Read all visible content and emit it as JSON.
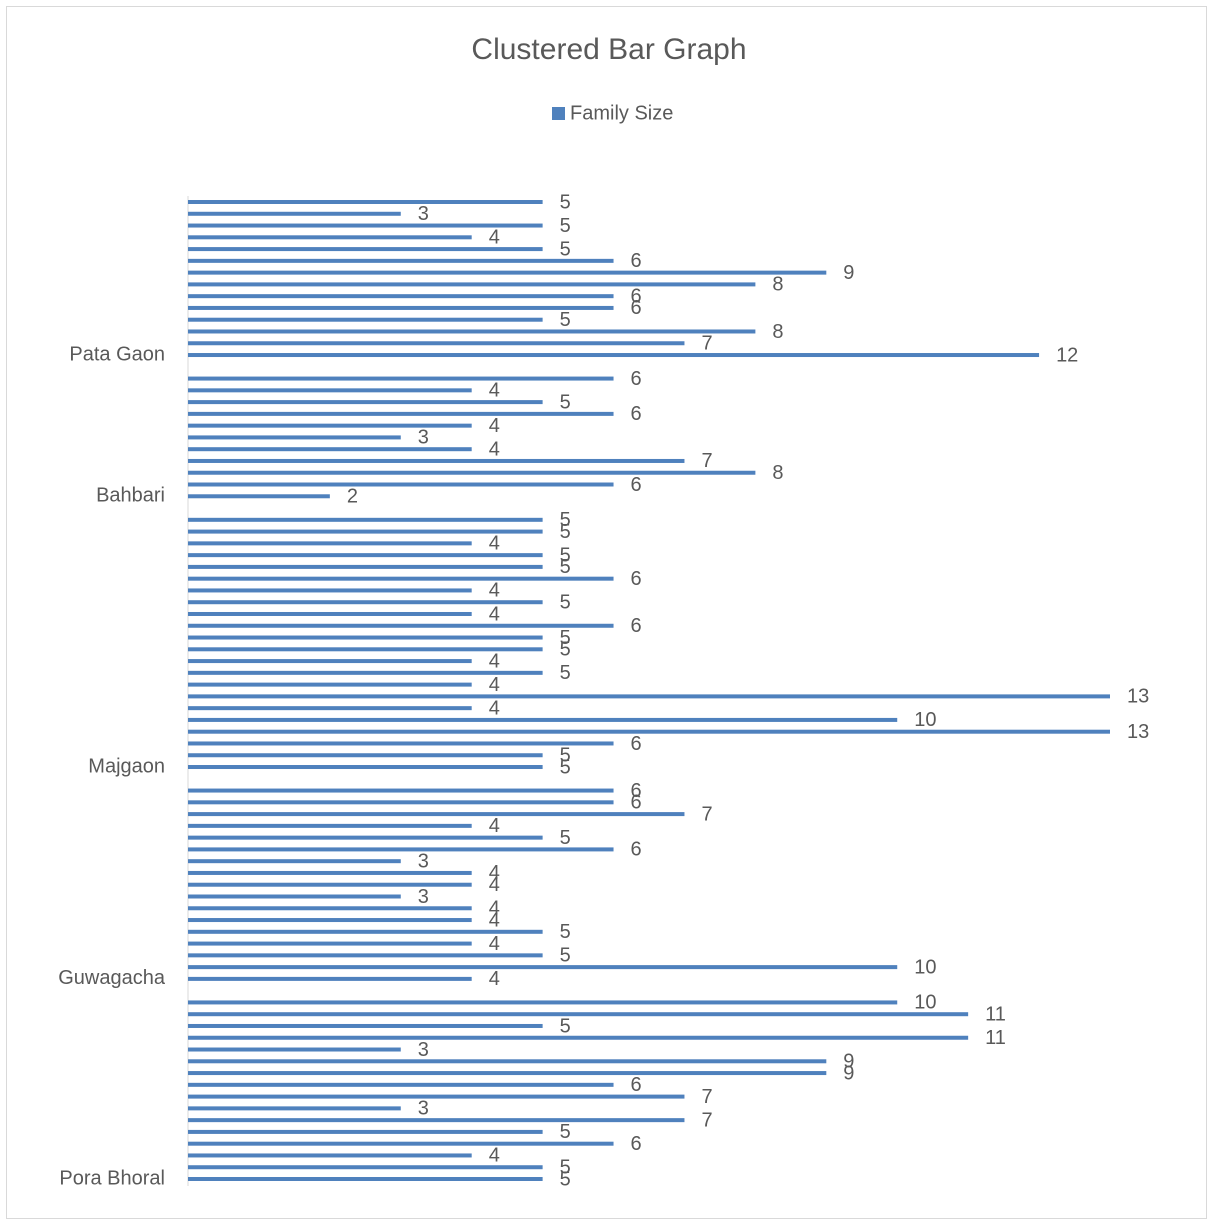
{
  "chart_data": {
    "type": "bar",
    "orientation": "horizontal",
    "title": "Clustered Bar Graph",
    "categories": [
      null,
      null,
      null,
      null,
      null,
      null,
      null,
      null,
      null,
      null,
      null,
      null,
      null,
      "Pata Gaon",
      null,
      null,
      null,
      null,
      null,
      null,
      null,
      null,
      null,
      null,
      null,
      "Bahbari",
      null,
      null,
      null,
      null,
      null,
      null,
      null,
      null,
      null,
      null,
      null,
      null,
      null,
      null,
      null,
      null,
      null,
      null,
      null,
      null,
      null,
      null,
      "Majgaon",
      null,
      null,
      null,
      null,
      null,
      null,
      null,
      null,
      null,
      null,
      null,
      null,
      null,
      null,
      null,
      null,
      null,
      "Guwagacha",
      null,
      null,
      null,
      null,
      null,
      null,
      null,
      null,
      null,
      null,
      null,
      null,
      null,
      null,
      null,
      null,
      "Pora Bhoral"
    ],
    "series": [
      {
        "name": "Family Size",
        "color": "#4f81bd",
        "values": [
          5,
          3,
          5,
          4,
          5,
          6,
          9,
          8,
          6,
          6,
          5,
          8,
          7,
          12,
          null,
          6,
          4,
          5,
          6,
          4,
          3,
          4,
          7,
          8,
          6,
          2,
          null,
          5,
          5,
          4,
          5,
          5,
          6,
          4,
          5,
          4,
          6,
          5,
          5,
          4,
          5,
          4,
          13,
          4,
          10,
          13,
          6,
          5,
          5,
          null,
          6,
          6,
          7,
          4,
          5,
          6,
          3,
          4,
          4,
          3,
          4,
          4,
          5,
          4,
          5,
          10,
          4,
          null,
          10,
          11,
          5,
          11,
          3,
          9,
          9,
          6,
          7,
          3,
          7,
          5,
          6,
          4,
          5,
          5
        ]
      }
    ],
    "xlim": [
      0,
      13
    ],
    "legend": "top"
  }
}
